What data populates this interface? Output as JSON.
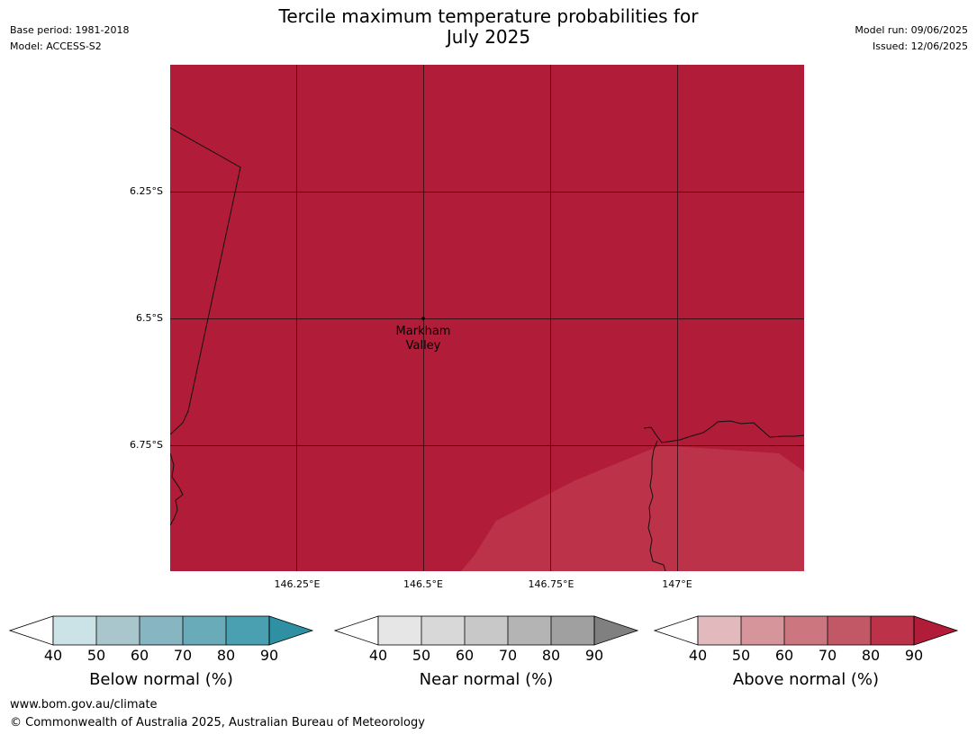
{
  "header": {
    "title_line1": "Tercile maximum temperature probabilities for",
    "title_line2": "July 2025",
    "base_period": "Base period: 1981-2018",
    "model": "Model: ACCESS-S2",
    "model_run": "Model run: 09/06/2025",
    "issued": "Issued: 12/06/2025"
  },
  "map": {
    "place_label_line1": "Markham",
    "place_label_line2": "Valley",
    "lat_labels": [
      "6.25°S",
      "6.5°S",
      "6.75°S"
    ],
    "lon_labels": [
      "146.25°E",
      "146.5°E",
      "146.75°E",
      "147°E"
    ],
    "colors": {
      "above_90": "#b11c38",
      "above_80": "#bc3249"
    }
  },
  "colorbars": [
    {
      "title": "Below normal (%)",
      "ticks": [
        "40",
        "50",
        "60",
        "70",
        "80",
        "90"
      ],
      "colors": [
        "#cbe2e6",
        "#a8c6cb",
        "#88b5c2",
        "#6aabb9",
        "#4aa0b0",
        "#2e90a2"
      ]
    },
    {
      "title": "Near normal (%)",
      "ticks": [
        "40",
        "50",
        "60",
        "70",
        "80",
        "90"
      ],
      "colors": [
        "#e6e6e6",
        "#d8d8d8",
        "#c8c8c8",
        "#b4b4b4",
        "#a0a0a0",
        "#808080"
      ]
    },
    {
      "title": "Above normal (%)",
      "ticks": [
        "40",
        "50",
        "60",
        "70",
        "80",
        "90"
      ],
      "colors": [
        "#e2b9bd",
        "#d6959b",
        "#cc7780",
        "#c25865",
        "#bc3249",
        "#b11c38"
      ]
    }
  ],
  "footer": {
    "website": "www.bom.gov.au/climate",
    "copyright": "© Commonwealth of Australia 2025, Australian Bureau of Meteorology"
  }
}
